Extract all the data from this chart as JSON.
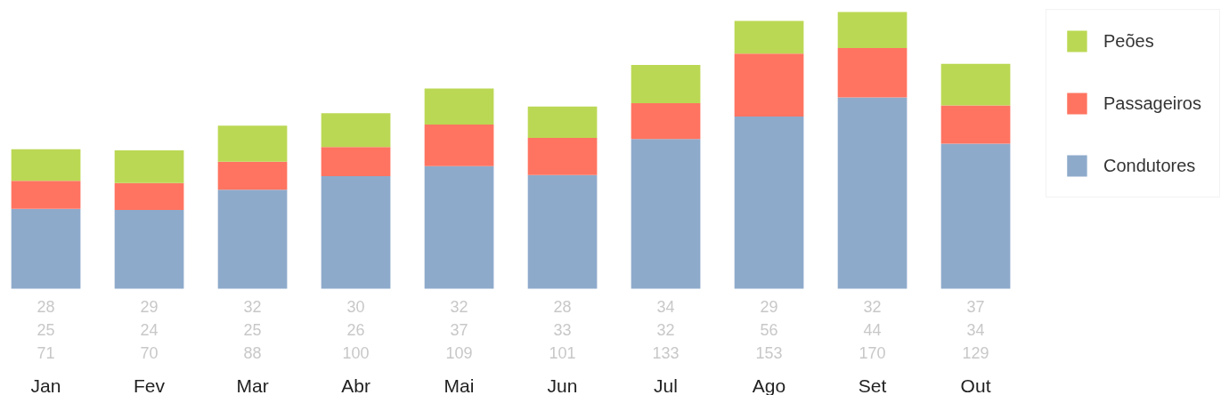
{
  "chart_data": {
    "type": "bar",
    "stacked": true,
    "data_labels": true,
    "legend": "top right",
    "grid": false,
    "categories": [
      "Jan",
      "Fev",
      "Mar",
      "Abr",
      "Mai",
      "Jun",
      "Jul",
      "Ago",
      "Set",
      "Out"
    ],
    "series": [
      {
        "name": "Condutores",
        "color": "#8eaacb",
        "values": [
          71,
          70,
          88,
          100,
          109,
          101,
          133,
          153,
          170,
          129
        ]
      },
      {
        "name": "Passageiros",
        "color": "#ff7461",
        "values": [
          25,
          24,
          25,
          26,
          37,
          33,
          32,
          56,
          44,
          34
        ]
      },
      {
        "name": "Peões",
        "color": "#bbd854",
        "values": [
          28,
          29,
          32,
          30,
          32,
          28,
          34,
          29,
          32,
          37
        ]
      }
    ]
  }
}
